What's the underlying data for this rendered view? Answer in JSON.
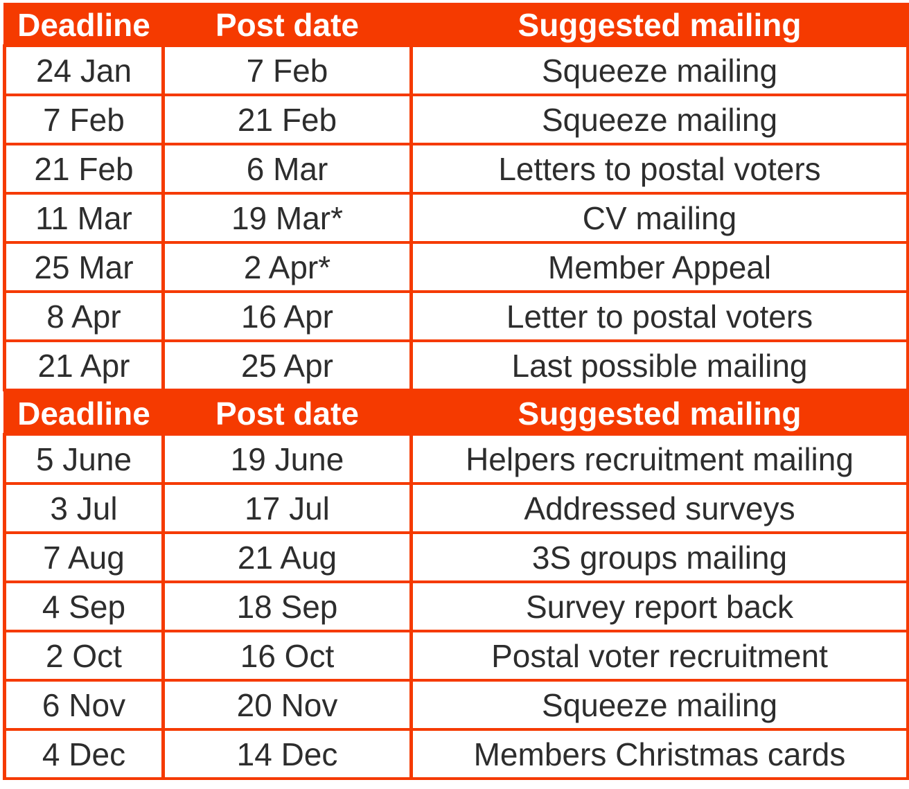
{
  "colors": {
    "accent": "#F53A00",
    "header_text": "#FFFFFF",
    "body_text": "#2D2D2D",
    "cell_bg": "#FFFFFF"
  },
  "chart_data": [
    {
      "type": "table",
      "title": "",
      "headers": [
        "Deadline",
        "Post date",
        "Suggested mailing"
      ],
      "rows": [
        [
          "24 Jan",
          "7 Feb",
          "Squeeze mailing"
        ],
        [
          "7 Feb",
          "21 Feb",
          "Squeeze mailing"
        ],
        [
          "21 Feb",
          "6 Mar",
          "Letters to postal voters"
        ],
        [
          "11 Mar",
          "19 Mar*",
          "CV mailing"
        ],
        [
          "25 Mar",
          "2 Apr*",
          "Member Appeal"
        ],
        [
          "8 Apr",
          "16 Apr",
          "Letter to postal voters"
        ],
        [
          "21 Apr",
          "25 Apr",
          "Last possible mailing"
        ]
      ]
    },
    {
      "type": "table",
      "title": "",
      "headers": [
        "Deadline",
        "Post date",
        "Suggested mailing"
      ],
      "rows": [
        [
          "5 June",
          "19 June",
          "Helpers recruitment mailing"
        ],
        [
          "3 Jul",
          "17 Jul",
          "Addressed surveys"
        ],
        [
          "7 Aug",
          "21 Aug",
          "3S groups mailing"
        ],
        [
          "4 Sep",
          "18 Sep",
          "Survey report back"
        ],
        [
          "2 Oct",
          "16 Oct",
          "Postal voter recruitment"
        ],
        [
          "6 Nov",
          "20 Nov",
          "Squeeze mailing"
        ],
        [
          "4 Dec",
          "14 Dec",
          "Members Christmas cards"
        ]
      ]
    }
  ]
}
